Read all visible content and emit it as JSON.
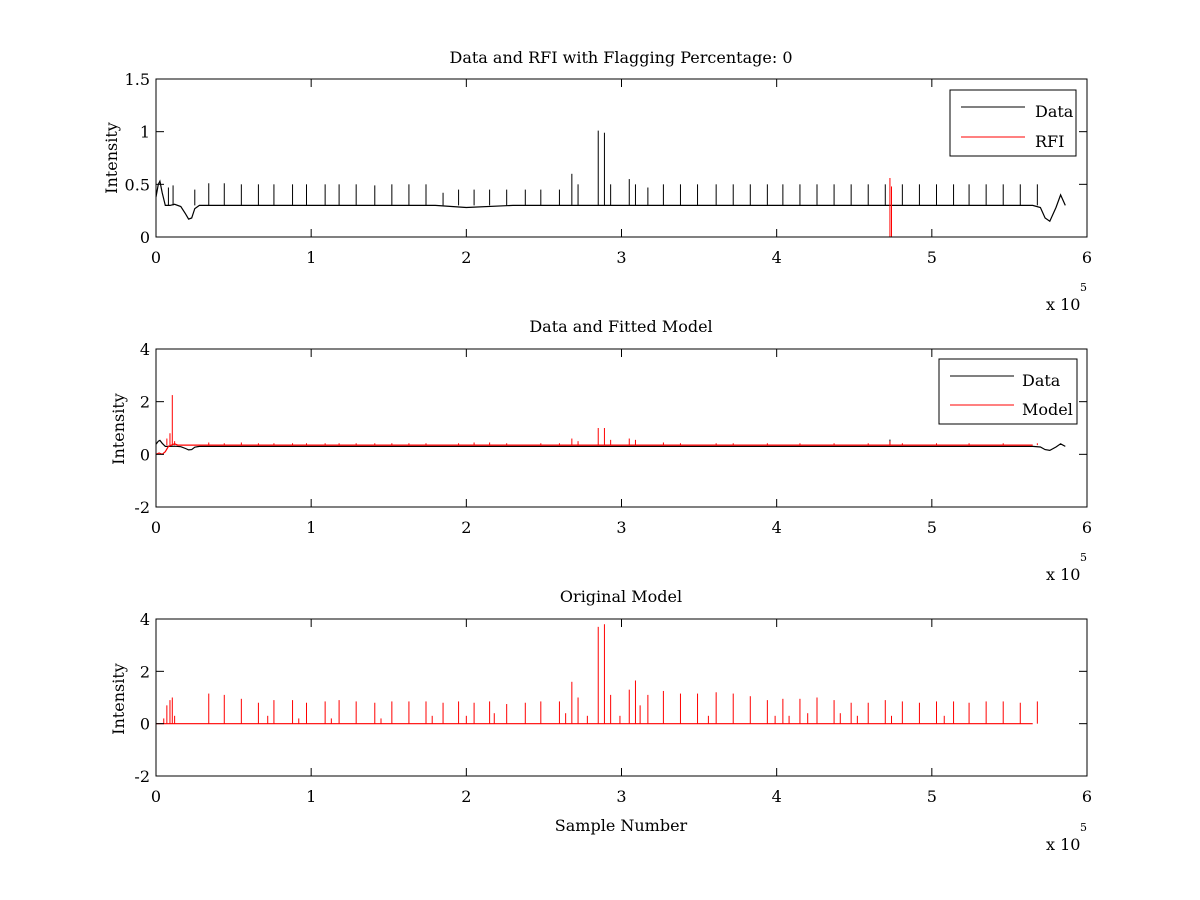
{
  "colors": {
    "data": "#000000",
    "rfi": "#ff0000",
    "model": "#ff0000",
    "background": "#ffffff",
    "axes": "#000000"
  },
  "chart_data": [
    {
      "type": "line",
      "title": "Data and RFI with Flagging Percentage: 0",
      "xlabel": "",
      "ylabel": "Intensity",
      "xlim": [
        0,
        600000
      ],
      "ylim": [
        0,
        1.5
      ],
      "xticks": [
        0,
        100000,
        200000,
        300000,
        400000,
        500000,
        600000
      ],
      "xtick_labels": [
        "0",
        "1",
        "2",
        "3",
        "4",
        "5",
        "6"
      ],
      "yticks": [
        0,
        0.5,
        1,
        1.5
      ],
      "ytick_labels": [
        "0",
        "0.5",
        "1",
        "1.5"
      ],
      "x_multiplier": {
        "base": "x 10",
        "exponent": "5"
      },
      "legend": {
        "position": "top-right",
        "entries": [
          "Data",
          "RFI"
        ]
      },
      "series": [
        {
          "name": "Data",
          "color": "#000000",
          "baseline": 0.3,
          "x": [
            0,
            1500,
            2500,
            4000,
            6000,
            9000,
            12000,
            16000,
            19000,
            21000,
            23000,
            25000,
            28000,
            32000,
            50000,
            100000,
            150000,
            180000,
            200000,
            230000,
            260000,
            300000,
            350000,
            400000,
            450000,
            500000,
            550000,
            565000,
            570000,
            573000,
            576000,
            580000,
            583000,
            586000
          ],
          "y": [
            0.38,
            0.5,
            0.53,
            0.42,
            0.3,
            0.3,
            0.31,
            0.29,
            0.22,
            0.17,
            0.18,
            0.27,
            0.3,
            0.3,
            0.3,
            0.3,
            0.3,
            0.3,
            0.28,
            0.3,
            0.3,
            0.3,
            0.3,
            0.3,
            0.3,
            0.3,
            0.3,
            0.3,
            0.28,
            0.18,
            0.15,
            0.28,
            0.4,
            0.3
          ],
          "spikes": [
            [
              8000,
              0.47
            ],
            [
              11000,
              0.49
            ],
            [
              25000,
              0.45
            ],
            [
              34000,
              0.51
            ],
            [
              44000,
              0.51
            ],
            [
              55000,
              0.5
            ],
            [
              66000,
              0.5
            ],
            [
              76000,
              0.5
            ],
            [
              88000,
              0.5
            ],
            [
              97000,
              0.5
            ],
            [
              109000,
              0.5
            ],
            [
              118000,
              0.5
            ],
            [
              129000,
              0.5
            ],
            [
              141000,
              0.49
            ],
            [
              152000,
              0.5
            ],
            [
              163000,
              0.5
            ],
            [
              174000,
              0.5
            ],
            [
              185000,
              0.42
            ],
            [
              195000,
              0.45
            ],
            [
              205000,
              0.45
            ],
            [
              215000,
              0.45
            ],
            [
              226000,
              0.45
            ],
            [
              238000,
              0.45
            ],
            [
              248000,
              0.45
            ],
            [
              260000,
              0.45
            ],
            [
              268000,
              0.6
            ],
            [
              272000,
              0.5
            ],
            [
              285000,
              1.01
            ],
            [
              289000,
              0.99
            ],
            [
              293000,
              0.5
            ],
            [
              305000,
              0.55
            ],
            [
              309000,
              0.5
            ],
            [
              317000,
              0.47
            ],
            [
              327000,
              0.5
            ],
            [
              338000,
              0.5
            ],
            [
              349000,
              0.5
            ],
            [
              361000,
              0.5
            ],
            [
              372000,
              0.5
            ],
            [
              383000,
              0.5
            ],
            [
              394000,
              0.5
            ],
            [
              404000,
              0.5
            ],
            [
              415000,
              0.5
            ],
            [
              426000,
              0.5
            ],
            [
              437000,
              0.5
            ],
            [
              448000,
              0.5
            ],
            [
              459000,
              0.5
            ],
            [
              470000,
              0.5
            ],
            [
              481000,
              0.5
            ],
            [
              492000,
              0.5
            ],
            [
              503000,
              0.5
            ],
            [
              514000,
              0.5
            ],
            [
              524000,
              0.5
            ],
            [
              535000,
              0.5
            ],
            [
              546000,
              0.5
            ],
            [
              557000,
              0.5
            ],
            [
              568000,
              0.5
            ]
          ]
        },
        {
          "name": "RFI",
          "color": "#ff0000",
          "spikes": [
            [
              473000,
              0.56
            ],
            [
              474000,
              0.48
            ]
          ]
        }
      ]
    },
    {
      "type": "line",
      "title": "Data and Fitted Model",
      "xlabel": "",
      "ylabel": "Intensity",
      "xlim": [
        0,
        600000
      ],
      "ylim": [
        -2,
        4
      ],
      "xticks": [
        0,
        100000,
        200000,
        300000,
        400000,
        500000,
        600000
      ],
      "xtick_labels": [
        "0",
        "1",
        "2",
        "3",
        "4",
        "5",
        "6"
      ],
      "yticks": [
        -2,
        0,
        2,
        4
      ],
      "ytick_labels": [
        "-2",
        "0",
        "2",
        "4"
      ],
      "x_multiplier": {
        "base": "x 10",
        "exponent": "5"
      },
      "legend": {
        "position": "top-right",
        "entries": [
          "Data",
          "Model"
        ]
      },
      "series": [
        {
          "name": "Data",
          "color": "#000000",
          "x": [
            0,
            1500,
            2500,
            4000,
            6000,
            9000,
            12000,
            16000,
            19000,
            21000,
            23000,
            25000,
            28000,
            32000,
            50000,
            100000,
            150000,
            200000,
            250000,
            300000,
            350000,
            400000,
            450000,
            500000,
            550000,
            565000,
            570000,
            573000,
            576000,
            580000,
            583000,
            586000
          ],
          "y": [
            0.38,
            0.5,
            0.53,
            0.42,
            0.3,
            0.3,
            0.31,
            0.29,
            0.22,
            0.17,
            0.18,
            0.27,
            0.3,
            0.3,
            0.3,
            0.3,
            0.3,
            0.3,
            0.3,
            0.3,
            0.3,
            0.3,
            0.3,
            0.3,
            0.3,
            0.3,
            0.28,
            0.18,
            0.15,
            0.28,
            0.4,
            0.3
          ],
          "spikes": [
            [
              473000,
              0.56
            ]
          ]
        },
        {
          "name": "Model",
          "color": "#ff0000",
          "x": [
            0,
            2000,
            4000,
            6000,
            8000,
            10000,
            12000,
            14000,
            20000,
            565000
          ],
          "y": [
            0.0,
            0.05,
            0.0,
            0.1,
            0.3,
            0.35,
            0.4,
            0.35,
            0.35,
            0.35
          ],
          "spikes": [
            [
              7000,
              0.6
            ],
            [
              9000,
              0.8
            ],
            [
              10500,
              2.25
            ],
            [
              12000,
              0.5
            ],
            [
              34000,
              0.45
            ],
            [
              44000,
              0.42
            ],
            [
              55000,
              0.45
            ],
            [
              66000,
              0.42
            ],
            [
              76000,
              0.42
            ],
            [
              88000,
              0.42
            ],
            [
              97000,
              0.42
            ],
            [
              109000,
              0.42
            ],
            [
              118000,
              0.42
            ],
            [
              129000,
              0.42
            ],
            [
              141000,
              0.42
            ],
            [
              152000,
              0.42
            ],
            [
              163000,
              0.42
            ],
            [
              174000,
              0.42
            ],
            [
              195000,
              0.42
            ],
            [
              205000,
              0.45
            ],
            [
              215000,
              0.45
            ],
            [
              226000,
              0.42
            ],
            [
              248000,
              0.42
            ],
            [
              260000,
              0.42
            ],
            [
              268000,
              0.6
            ],
            [
              272000,
              0.5
            ],
            [
              285000,
              1.0
            ],
            [
              289000,
              1.0
            ],
            [
              293000,
              0.55
            ],
            [
              305000,
              0.6
            ],
            [
              309000,
              0.55
            ],
            [
              327000,
              0.45
            ],
            [
              338000,
              0.42
            ],
            [
              361000,
              0.42
            ],
            [
              372000,
              0.42
            ],
            [
              394000,
              0.42
            ],
            [
              415000,
              0.42
            ],
            [
              437000,
              0.42
            ],
            [
              459000,
              0.42
            ],
            [
              473000,
              0.5
            ],
            [
              481000,
              0.42
            ],
            [
              503000,
              0.42
            ],
            [
              524000,
              0.42
            ],
            [
              546000,
              0.42
            ],
            [
              568000,
              0.42
            ]
          ]
        }
      ]
    },
    {
      "type": "line",
      "title": "Original Model",
      "xlabel": "Sample Number",
      "ylabel": "Intensity",
      "xlim": [
        0,
        600000
      ],
      "ylim": [
        -2,
        4
      ],
      "xticks": [
        0,
        100000,
        200000,
        300000,
        400000,
        500000,
        600000
      ],
      "xtick_labels": [
        "0",
        "1",
        "2",
        "3",
        "4",
        "5",
        "6"
      ],
      "yticks": [
        -2,
        0,
        2,
        4
      ],
      "ytick_labels": [
        "-2",
        "0",
        "2",
        "4"
      ],
      "x_multiplier": {
        "base": "x 10",
        "exponent": "5"
      },
      "series": [
        {
          "name": "Model",
          "color": "#ff0000",
          "x": [
            0,
            565000
          ],
          "y": [
            0,
            0
          ],
          "spikes": [
            [
              5000,
              0.2
            ],
            [
              7000,
              0.7
            ],
            [
              9000,
              0.9
            ],
            [
              10500,
              1.0
            ],
            [
              12000,
              0.3
            ],
            [
              34000,
              1.15
            ],
            [
              44000,
              1.1
            ],
            [
              55000,
              0.95
            ],
            [
              66000,
              0.8
            ],
            [
              72000,
              0.3
            ],
            [
              76000,
              0.9
            ],
            [
              88000,
              0.9
            ],
            [
              92000,
              0.2
            ],
            [
              97000,
              0.8
            ],
            [
              109000,
              0.85
            ],
            [
              113000,
              0.2
            ],
            [
              118000,
              0.9
            ],
            [
              129000,
              0.85
            ],
            [
              141000,
              0.8
            ],
            [
              145000,
              0.2
            ],
            [
              152000,
              0.85
            ],
            [
              163000,
              0.85
            ],
            [
              174000,
              0.85
            ],
            [
              178000,
              0.3
            ],
            [
              185000,
              0.8
            ],
            [
              195000,
              0.85
            ],
            [
              200000,
              0.3
            ],
            [
              205000,
              0.8
            ],
            [
              215000,
              0.85
            ],
            [
              218000,
              0.4
            ],
            [
              226000,
              0.75
            ],
            [
              238000,
              0.8
            ],
            [
              248000,
              0.85
            ],
            [
              260000,
              0.85
            ],
            [
              264000,
              0.4
            ],
            [
              268000,
              1.6
            ],
            [
              272000,
              1.0
            ],
            [
              278000,
              0.3
            ],
            [
              285000,
              3.7
            ],
            [
              289000,
              3.8
            ],
            [
              293000,
              1.1
            ],
            [
              299000,
              0.3
            ],
            [
              305000,
              1.3
            ],
            [
              309000,
              1.65
            ],
            [
              312000,
              0.7
            ],
            [
              317000,
              1.1
            ],
            [
              327000,
              1.25
            ],
            [
              338000,
              1.15
            ],
            [
              349000,
              1.15
            ],
            [
              356000,
              0.3
            ],
            [
              361000,
              1.2
            ],
            [
              372000,
              1.15
            ],
            [
              383000,
              1.05
            ],
            [
              394000,
              0.9
            ],
            [
              399000,
              0.3
            ],
            [
              404000,
              0.95
            ],
            [
              408000,
              0.3
            ],
            [
              415000,
              0.95
            ],
            [
              420000,
              0.4
            ],
            [
              426000,
              1.0
            ],
            [
              437000,
              0.9
            ],
            [
              441000,
              0.4
            ],
            [
              448000,
              0.8
            ],
            [
              452000,
              0.3
            ],
            [
              459000,
              0.8
            ],
            [
              470000,
              0.9
            ],
            [
              474000,
              0.3
            ],
            [
              481000,
              0.85
            ],
            [
              492000,
              0.8
            ],
            [
              503000,
              0.85
            ],
            [
              508000,
              0.3
            ],
            [
              514000,
              0.85
            ],
            [
              524000,
              0.8
            ],
            [
              535000,
              0.85
            ],
            [
              546000,
              0.85
            ],
            [
              557000,
              0.8
            ],
            [
              568000,
              0.85
            ]
          ]
        }
      ]
    }
  ]
}
